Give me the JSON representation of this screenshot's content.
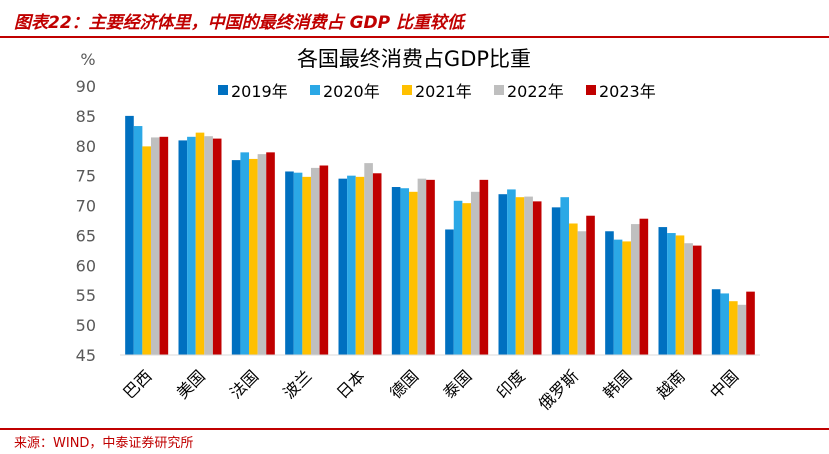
{
  "header": {
    "figure_title": "图表22：主要经济体里，中国的最终消费占 GDP 比重较低"
  },
  "footer": {
    "source": "来源：WIND，中泰证券研究所"
  },
  "colors": {
    "accent": "#c00000",
    "series": [
      "#0070c0",
      "#2ba8e6",
      "#ffc000",
      "#bfbfbf",
      "#c00000"
    ]
  },
  "chart_data": {
    "type": "bar",
    "title": "各国最终消费占GDP比重",
    "ylabel": "%",
    "xlabel": "",
    "ylim": [
      45,
      90
    ],
    "yticks": [
      "45",
      "50",
      "55",
      "60",
      "65",
      "70",
      "75",
      "80",
      "85",
      "90"
    ],
    "grid": false,
    "legend_position": "top",
    "categories": [
      "巴西",
      "美国",
      "法国",
      "波兰",
      "日本",
      "德国",
      "泰国",
      "印度",
      "俄罗斯",
      "韩国",
      "越南",
      "中国"
    ],
    "series": [
      {
        "name": "2019年",
        "values": [
          85.0,
          80.9,
          77.6,
          75.7,
          74.5,
          73.1,
          66.0,
          71.9,
          69.7,
          65.7,
          66.4,
          56.0
        ]
      },
      {
        "name": "2020年",
        "values": [
          83.3,
          81.5,
          78.9,
          75.5,
          75.0,
          72.9,
          70.8,
          72.7,
          71.4,
          64.3,
          65.4,
          55.3
        ]
      },
      {
        "name": "2021年",
        "values": [
          79.9,
          82.2,
          77.8,
          74.8,
          74.8,
          72.3,
          70.4,
          71.4,
          67.0,
          64.0,
          65.0,
          54.0
        ]
      },
      {
        "name": "2022年",
        "values": [
          81.4,
          81.6,
          78.6,
          76.3,
          77.1,
          74.5,
          72.3,
          71.5,
          65.7,
          66.9,
          63.7,
          53.4
        ]
      },
      {
        "name": "2023年",
        "values": [
          81.5,
          81.2,
          78.9,
          76.7,
          75.4,
          74.3,
          74.3,
          70.7,
          68.3,
          67.8,
          63.3,
          55.6
        ]
      }
    ]
  }
}
